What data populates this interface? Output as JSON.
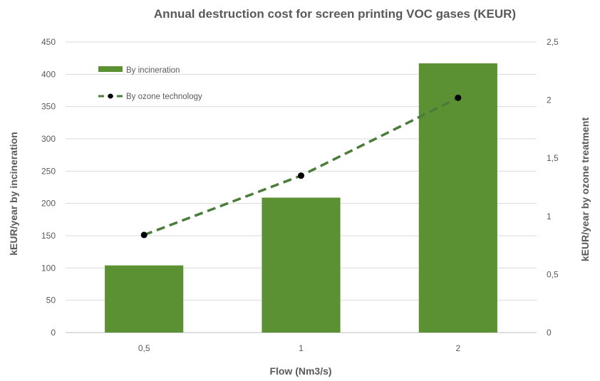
{
  "chart_data": {
    "type": "bar",
    "title": "Annual destruction cost for screen printing VOC gases (KEUR)",
    "xlabel": "Flow (Nm3/s)",
    "ylabel": "kEUR/year by incineration",
    "y2label": "kEUR/year by ozone treatment",
    "categories": [
      "0,5",
      "1",
      "2"
    ],
    "series": [
      {
        "name": "By incineration",
        "type": "bar",
        "axis": "left",
        "values": [
          104,
          209,
          417
        ],
        "color": "#5b9132"
      },
      {
        "name": "By ozone technology",
        "type": "line",
        "axis": "right",
        "values": [
          0.84,
          1.35,
          2.02
        ],
        "color": "#4a7c3a",
        "marker_color": "#000000"
      }
    ],
    "ylim": [
      0,
      450
    ],
    "yticks": [
      "0",
      "50",
      "100",
      "150",
      "200",
      "250",
      "300",
      "350",
      "400",
      "450"
    ],
    "y2lim": [
      0,
      2.5
    ],
    "y2ticks": [
      "0",
      "0,5",
      "1",
      "1,5",
      "2",
      "2,5"
    ],
    "grid": true,
    "legend_position": "top-left"
  }
}
